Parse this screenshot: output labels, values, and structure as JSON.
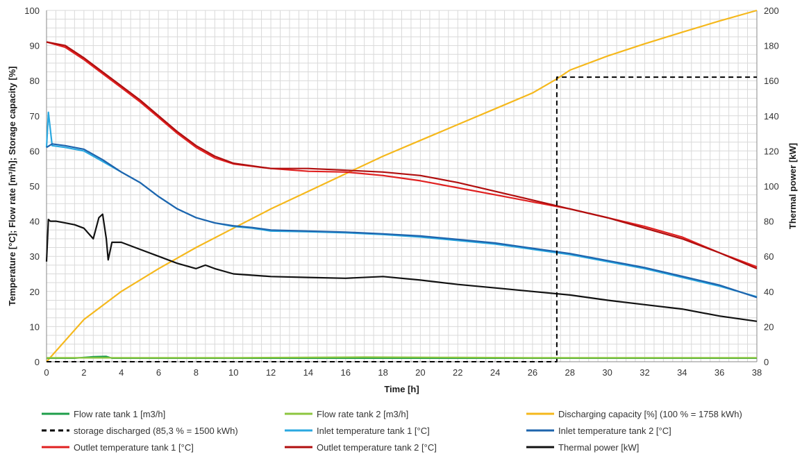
{
  "chart_data": {
    "type": "line",
    "title": "",
    "xlabel": "Time [h]",
    "ylabel": "Temperature [°C]; Flow rate [m³/h]; Storage capacity [%]",
    "y2label": "Thermal power [kW]",
    "xlim": [
      0,
      38
    ],
    "ylim": [
      0,
      100
    ],
    "y2lim": [
      0,
      200
    ],
    "xticks": [
      "0",
      "2",
      "4",
      "6",
      "8",
      "10",
      "12",
      "14",
      "16",
      "18",
      "20",
      "22",
      "24",
      "26",
      "28",
      "30",
      "32",
      "34",
      "36",
      "38"
    ],
    "yticks": [
      "0",
      "10",
      "20",
      "30",
      "40",
      "50",
      "60",
      "70",
      "80",
      "90",
      "100"
    ],
    "y2ticks": [
      "0",
      "20",
      "40",
      "60",
      "80",
      "100",
      "120",
      "140",
      "160",
      "180",
      "200"
    ],
    "grid": true,
    "legend_position": "bottom",
    "series": [
      {
        "name": "Flow rate tank 1 [m3/h]",
        "color": "#1e9e4a",
        "axis": "left",
        "dash": "",
        "x": [
          0,
          1.5,
          2.5,
          3.2,
          3.5,
          10,
          20,
          30,
          38
        ],
        "y": [
          1.0,
          1.0,
          1.4,
          1.5,
          1.0,
          1.0,
          1.0,
          1.0,
          1.0
        ]
      },
      {
        "name": "Flow rate tank 2 [m3/h]",
        "color": "#8cc63f",
        "axis": "left",
        "dash": "",
        "x": [
          0,
          10,
          17,
          22,
          26,
          30,
          38
        ],
        "y": [
          1.1,
          1.1,
          1.3,
          1.2,
          1.1,
          1.1,
          1.1
        ]
      },
      {
        "name": "Discharging capacity [%] (100 % = 1758 kWh)",
        "color": "#f5b81c",
        "axis": "left",
        "dash": "",
        "x": [
          0,
          2,
          4,
          6,
          8,
          10,
          12,
          14,
          16,
          18,
          20,
          22,
          24,
          26,
          27.3,
          28,
          30,
          32,
          34,
          36,
          38
        ],
        "y": [
          0,
          12,
          20,
          26.5,
          32.5,
          38,
          43.5,
          48.5,
          53.5,
          58.5,
          63,
          67.5,
          72,
          76.5,
          80.5,
          83,
          87,
          90.5,
          93.8,
          97,
          100
        ]
      },
      {
        "name": "storage discharged (85,3 % = 1500 kWh)",
        "color": "#000000",
        "axis": "left",
        "dash": "7,5",
        "x": [
          0,
          27.3,
          27.3,
          38
        ],
        "y": [
          0,
          0,
          81,
          81
        ]
      },
      {
        "name": "Inlet temperature tank 1 [°C]",
        "color": "#2aa8e0",
        "axis": "left",
        "dash": "",
        "x": [
          0,
          0.1,
          0.3,
          1,
          2,
          3,
          4,
          5,
          6,
          7,
          8,
          9,
          10,
          11,
          12,
          14,
          16,
          18,
          20,
          22,
          24,
          26,
          28,
          30,
          32,
          34,
          36,
          38
        ],
        "y": [
          61,
          71,
          61.5,
          61,
          60,
          57,
          54,
          51,
          47,
          43.5,
          41,
          39.5,
          38.5,
          38,
          37.2,
          37,
          36.7,
          36.2,
          35.5,
          34.5,
          33.5,
          32,
          30.5,
          28.5,
          26.5,
          24,
          21.5,
          18.5
        ]
      },
      {
        "name": "Inlet temperature tank 2 [°C]",
        "color": "#1e64ad",
        "axis": "left",
        "dash": "",
        "x": [
          0,
          0.3,
          1,
          2,
          3,
          4,
          5,
          6,
          7,
          8,
          9,
          10,
          11,
          12,
          14,
          16,
          18,
          20,
          22,
          24,
          26,
          28,
          30,
          32,
          34,
          36,
          38
        ],
        "y": [
          61,
          62,
          61.5,
          60.5,
          57.5,
          54,
          51,
          47,
          43.5,
          41,
          39.5,
          38.7,
          38.2,
          37.5,
          37.2,
          36.9,
          36.4,
          35.8,
          34.8,
          33.8,
          32.3,
          30.8,
          28.8,
          26.8,
          24.3,
          21.8,
          18.3
        ]
      },
      {
        "name": "Outlet temperature tank 1 [°C]",
        "color": "#e02020",
        "axis": "left",
        "dash": "",
        "x": [
          0,
          1,
          2,
          3,
          4,
          5,
          6,
          7,
          8,
          9,
          10,
          12,
          14,
          16,
          18,
          20,
          22,
          24,
          26,
          28,
          30,
          32,
          34,
          36,
          38
        ],
        "y": [
          91,
          89.5,
          86,
          82,
          78,
          74,
          69.5,
          65,
          61,
          58,
          56.3,
          55,
          54.2,
          54,
          53,
          51.5,
          49.5,
          47.5,
          45.5,
          43.5,
          41,
          38.5,
          35.5,
          31,
          27
        ]
      },
      {
        "name": "Outlet temperature tank 2 [°C]",
        "color": "#b00e0e",
        "axis": "left",
        "dash": "",
        "x": [
          0,
          1,
          2,
          3,
          4,
          5,
          6,
          7,
          8,
          9,
          10,
          12,
          14,
          16,
          18,
          20,
          22,
          24,
          26,
          28,
          30,
          32,
          34,
          36,
          38
        ],
        "y": [
          91,
          90,
          86.5,
          82.5,
          78.5,
          74.5,
          70,
          65.5,
          61.5,
          58.5,
          56.5,
          55,
          55,
          54.5,
          54,
          53,
          51,
          48.5,
          46,
          43.5,
          41,
          38,
          35,
          31,
          26.5
        ]
      },
      {
        "name": "Thermal power [kW]",
        "color": "#111111",
        "axis": "right",
        "dash": "",
        "x": [
          0,
          0.1,
          0.2,
          0.5,
          1,
          1.5,
          2,
          2.5,
          2.8,
          3,
          3.2,
          3.3,
          3.5,
          4,
          5,
          6,
          7,
          8,
          8.5,
          9,
          10,
          12,
          14,
          16,
          18,
          20,
          22,
          24,
          26,
          28,
          30,
          32,
          34,
          36,
          38
        ],
        "y": [
          57,
          81,
          80,
          80,
          79,
          78,
          76,
          70,
          82,
          84,
          70,
          58,
          68,
          68,
          64,
          60,
          56,
          53,
          55,
          53,
          50,
          48.5,
          48,
          47.5,
          48.5,
          46.5,
          44,
          42,
          40,
          38,
          35,
          32.5,
          30,
          26,
          23
        ]
      }
    ]
  }
}
